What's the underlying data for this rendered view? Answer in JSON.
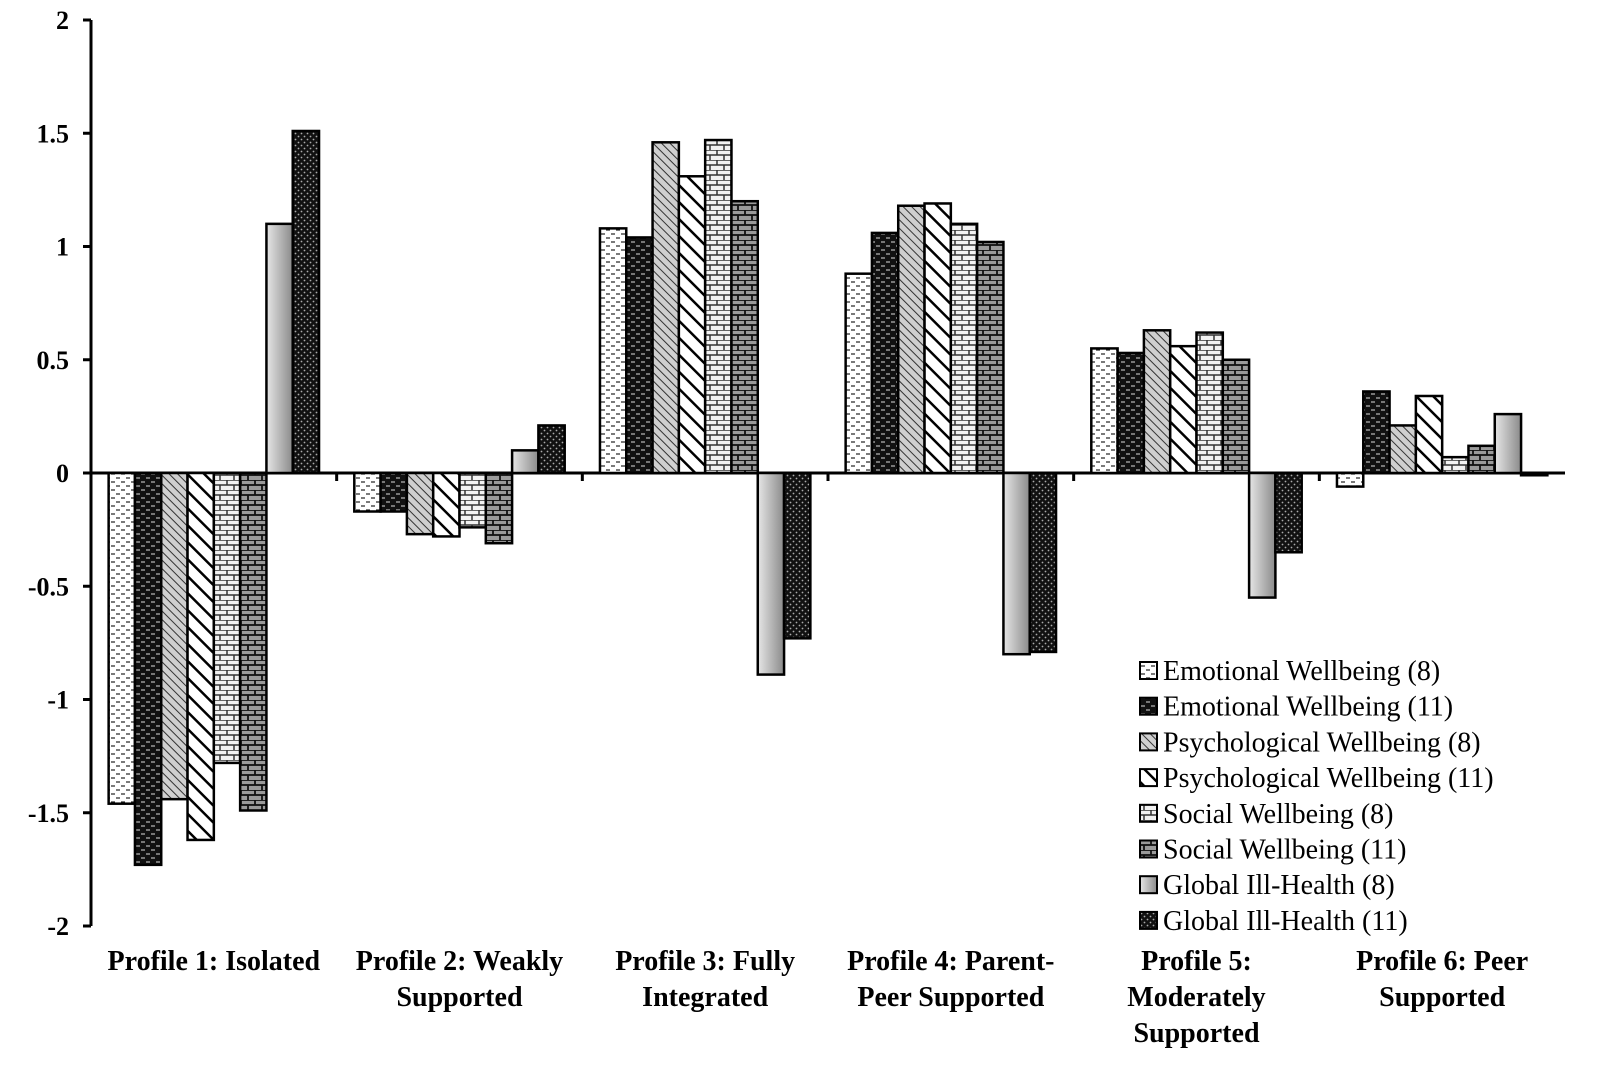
{
  "chart_data": {
    "type": "bar",
    "title": "",
    "xlabel": "",
    "ylabel": "",
    "ylim": [
      -2,
      2
    ],
    "yticks": [
      2,
      1.5,
      1,
      0.5,
      0,
      -0.5,
      -1,
      -1.5,
      -2
    ],
    "ytick_labels": [
      "2",
      "1.5",
      "1",
      "0.5",
      "0",
      "-0.5",
      "-1",
      "-1.5",
      "-2"
    ],
    "grid": false,
    "legend_position": "bottom-right",
    "categories": [
      [
        "Profile 1: Isolated"
      ],
      [
        "Profile 2: Weakly",
        "Supported"
      ],
      [
        "Profile 3: Fully",
        "Integrated"
      ],
      [
        "Profile 4: Parent-",
        "Peer Supported"
      ],
      [
        "Profile 5:",
        "Moderately",
        "Supported"
      ],
      [
        "Profile 6: Peer",
        "Supported"
      ]
    ],
    "series": [
      {
        "name": "Emotional Wellbeing (8)",
        "pattern": "dash-light",
        "values": [
          -1.46,
          -0.17,
          1.08,
          0.88,
          0.55,
          -0.06
        ]
      },
      {
        "name": "Emotional Wellbeing (11)",
        "pattern": "dash-dark",
        "values": [
          -1.73,
          -0.17,
          1.04,
          1.06,
          0.53,
          0.36
        ]
      },
      {
        "name": "Psychological Wellbeing (8)",
        "pattern": "diag-fine",
        "values": [
          -1.44,
          -0.27,
          1.46,
          1.18,
          0.63,
          0.21
        ]
      },
      {
        "name": "Psychological Wellbeing (11)",
        "pattern": "diag-wide",
        "values": [
          -1.62,
          -0.28,
          1.31,
          1.19,
          0.56,
          0.34
        ]
      },
      {
        "name": "Social Wellbeing (8)",
        "pattern": "brick-light",
        "values": [
          -1.28,
          -0.24,
          1.47,
          1.1,
          0.62,
          0.07
        ]
      },
      {
        "name": "Social Wellbeing (11)",
        "pattern": "brick-dark",
        "values": [
          -1.49,
          -0.31,
          1.2,
          1.02,
          0.5,
          0.12
        ]
      },
      {
        "name": "Global Ill-Health (8)",
        "pattern": "gray-gradient",
        "values": [
          1.1,
          0.1,
          -0.89,
          -0.8,
          -0.55,
          0.26
        ]
      },
      {
        "name": "Global Ill-Health (11)",
        "pattern": "dots-dark",
        "values": [
          1.51,
          0.21,
          -0.73,
          -0.79,
          -0.35,
          -0.01
        ]
      }
    ]
  }
}
